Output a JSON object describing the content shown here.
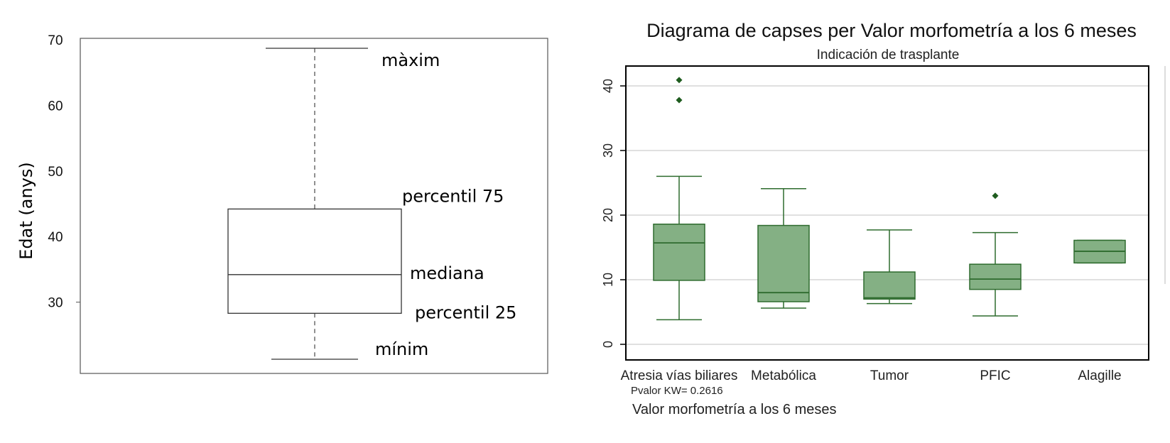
{
  "chart_data": [
    {
      "type": "box",
      "title": "",
      "ylabel": "Edat (anys)",
      "ylim": [
        21,
        70
      ],
      "yticks": [
        30,
        40,
        50,
        60,
        70
      ],
      "box": {
        "min": 21.3,
        "q1": 28.3,
        "median": 34.2,
        "q3": 44.2,
        "max": 68.7
      },
      "annotations": {
        "max": "màxim",
        "q3": "percentil 75",
        "median": "mediana",
        "q1": "percentil 25",
        "min": "mínim"
      }
    },
    {
      "type": "box",
      "title": "Diagrama de capses per Valor morfometría a los 6 meses",
      "subtitle": "Indicación de trasplante",
      "xlabel": "Valor morfometría a los 6 meses",
      "note": "Pvalor KW=  0.2616",
      "ylim": [
        -2,
        43
      ],
      "yticks": [
        0,
        10,
        20,
        30,
        40
      ],
      "grid": true,
      "fill_color": "#84b084",
      "stroke_color": "#2e6b2e",
      "outlier_color": "#1e5c1e",
      "categories": [
        "Atresia vías  biliares",
        "Metabólica",
        "Tumor",
        "PFIC",
        "Alagille"
      ],
      "boxes": [
        {
          "min": 3.8,
          "q1": 9.9,
          "median": 15.7,
          "q3": 18.6,
          "max": 26.0,
          "outliers": [
            40.9,
            37.8
          ]
        },
        {
          "min": 5.6,
          "q1": 6.6,
          "median": 8.0,
          "q3": 18.4,
          "max": 24.1,
          "outliers": []
        },
        {
          "min": 6.3,
          "q1": 7.0,
          "median": 7.2,
          "q3": 11.2,
          "max": 17.7,
          "outliers": []
        },
        {
          "min": 4.4,
          "q1": 8.5,
          "median": 10.1,
          "q3": 12.4,
          "max": 17.3,
          "outliers": [
            23.0
          ]
        },
        {
          "min": 12.6,
          "q1": 12.6,
          "median": 14.4,
          "q3": 16.1,
          "max": 16.1,
          "outliers": []
        }
      ]
    }
  ]
}
